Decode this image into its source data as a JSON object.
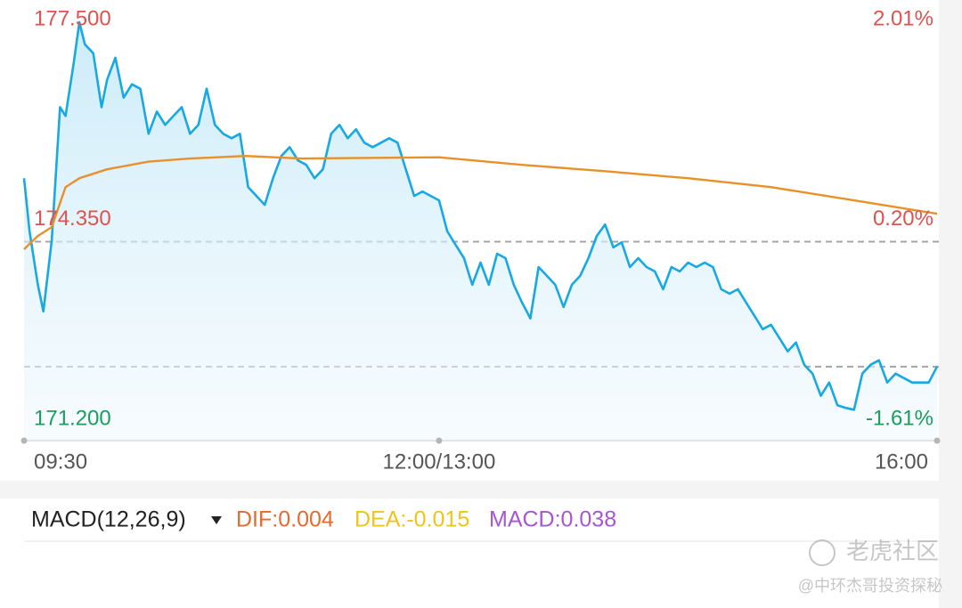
{
  "chart_data": {
    "type": "line",
    "xlim": [
      0,
      330
    ],
    "xticks": [
      {
        "value": 0,
        "label": "09:30"
      },
      {
        "value": 150,
        "label": "12:00/13:00"
      },
      {
        "value": 330,
        "label": "16:00"
      }
    ],
    "ylim": [
      171.2,
      177.5
    ],
    "yticks": [
      {
        "value": 177.5,
        "label": "177.500"
      },
      {
        "value": 174.35,
        "label": "174.350"
      },
      {
        "value": 171.2,
        "label": "171.200"
      }
    ],
    "y2ticks": [
      {
        "value": 177.5,
        "label": "2.01%"
      },
      {
        "value": 174.35,
        "label": "0.20%"
      },
      {
        "value": 171.2,
        "label": "-1.61%"
      }
    ],
    "ref_lines": [
      174.0,
      172.03
    ],
    "up_color": "#e0524f",
    "down_color": "#1a9e5a",
    "series": [
      {
        "name": "price",
        "color": "#18a9e2",
        "x": [
          0,
          2,
          5,
          7,
          10,
          13,
          15,
          18,
          20,
          22,
          25,
          28,
          30,
          33,
          36,
          39,
          42,
          45,
          48,
          51,
          54,
          57,
          60,
          63,
          66,
          69,
          72,
          75,
          78,
          81,
          84,
          87,
          90,
          93,
          96,
          99,
          102,
          105,
          108,
          111,
          114,
          117,
          120,
          123,
          126,
          129,
          132,
          135,
          138,
          141,
          144,
          147,
          150,
          153,
          156,
          159,
          162,
          165,
          168,
          171,
          174,
          177,
          180,
          183,
          186,
          189,
          192,
          195,
          198,
          201,
          204,
          207,
          210,
          213,
          216,
          219,
          222,
          225,
          228,
          231,
          234,
          237,
          240,
          243,
          246,
          249,
          252,
          255,
          258,
          261,
          264,
          267,
          270,
          273,
          276,
          279,
          282,
          285,
          288,
          291,
          294,
          297,
          300,
          303,
          306,
          309,
          312,
          315,
          318,
          321,
          324,
          327,
          330
        ],
        "values": [
          175.0,
          174.16,
          173.32,
          172.9,
          174.02,
          176.12,
          175.98,
          176.83,
          177.46,
          177.11,
          176.97,
          176.12,
          176.55,
          176.9,
          176.27,
          176.48,
          176.41,
          175.7,
          176.05,
          175.84,
          175.98,
          176.12,
          175.7,
          175.84,
          176.41,
          175.84,
          175.7,
          175.63,
          175.7,
          174.86,
          174.72,
          174.58,
          175.0,
          175.35,
          175.49,
          175.28,
          175.21,
          175.0,
          175.14,
          175.7,
          175.84,
          175.63,
          175.77,
          175.56,
          175.49,
          175.56,
          175.63,
          175.56,
          175.14,
          174.72,
          174.79,
          174.72,
          174.65,
          174.16,
          173.95,
          173.74,
          173.32,
          173.67,
          173.32,
          173.81,
          173.74,
          173.32,
          173.04,
          172.79,
          173.6,
          173.46,
          173.32,
          172.97,
          173.32,
          173.46,
          173.74,
          174.09,
          174.27,
          173.91,
          173.99,
          173.6,
          173.74,
          173.6,
          173.53,
          173.25,
          173.6,
          173.53,
          173.67,
          173.6,
          173.67,
          173.6,
          173.25,
          173.18,
          173.25,
          173.04,
          172.83,
          172.62,
          172.69,
          172.48,
          172.27,
          172.41,
          172.06,
          171.92,
          171.57,
          171.78,
          171.42,
          171.38,
          171.35,
          171.92,
          172.06,
          172.13,
          171.78,
          171.92,
          171.85,
          171.78,
          171.78,
          171.78,
          172.03
        ]
      },
      {
        "name": "average",
        "color": "#e8912a",
        "x": [
          0,
          5,
          10,
          15,
          20,
          30,
          45,
          60,
          80,
          100,
          150,
          180,
          210,
          240,
          270,
          300,
          330
        ],
        "values": [
          173.88,
          174.09,
          174.23,
          174.86,
          175.0,
          175.14,
          175.26,
          175.31,
          175.35,
          175.31,
          175.33,
          175.21,
          175.11,
          175.0,
          174.86,
          174.65,
          174.44
        ]
      }
    ],
    "indicator": {
      "name": "MACD(12,26,9)",
      "dif": "DIF:0.004",
      "dea": "DEA:-0.015",
      "macd": "MACD:0.038"
    }
  },
  "watermark": {
    "brand": "老虎社区",
    "author": "@中环杰哥投资探秘"
  }
}
